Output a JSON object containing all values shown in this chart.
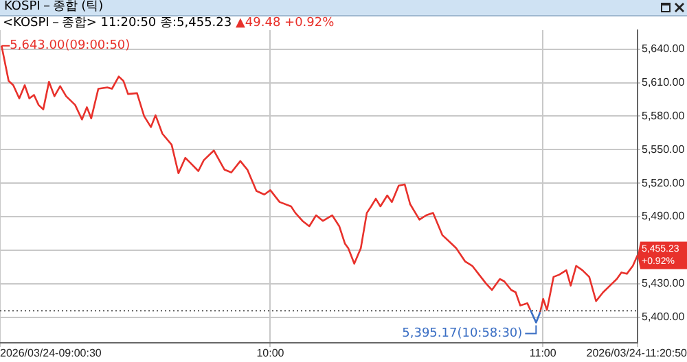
{
  "chart_data": {
    "type": "line",
    "title": "KOSPI－종합 (틱)",
    "subtitle": "<KOSPI－종합> 11:20:50 종:5,455.23",
    "x": [
      9.014,
      9.04,
      9.057,
      9.079,
      9.099,
      9.116,
      9.133,
      9.15,
      9.167,
      9.188,
      9.208,
      9.229,
      9.251,
      9.268,
      9.284,
      9.309,
      9.327,
      9.343,
      9.369,
      9.402,
      9.419,
      9.444,
      9.461,
      9.478,
      9.511,
      9.537,
      9.562,
      9.579,
      9.604,
      9.638,
      9.663,
      9.688,
      9.705,
      9.736,
      9.756,
      9.793,
      9.832,
      9.857,
      9.89,
      9.916,
      9.949,
      9.978,
      10.0,
      10.034,
      10.076,
      10.092,
      10.118,
      10.143,
      10.168,
      10.193,
      10.227,
      10.253,
      10.274,
      10.286,
      10.308,
      10.332,
      10.354,
      10.37,
      10.387,
      10.404,
      10.429,
      10.446,
      10.471,
      10.493,
      10.513,
      10.547,
      10.572,
      10.597,
      10.631,
      10.665,
      10.682,
      10.715,
      10.741,
      10.766,
      10.791,
      10.813,
      10.842,
      10.858,
      10.884,
      10.9,
      10.917,
      10.943,
      10.954,
      10.975,
      10.99,
      11.001,
      11.015,
      11.039,
      11.06,
      11.086,
      11.102,
      11.122,
      11.145,
      11.17,
      11.195,
      11.221,
      11.246,
      11.271,
      11.288,
      11.308,
      11.33,
      11.347
    ],
    "series": [
      {
        "color": "#e8312b",
        "values": [
          5643,
          5611.6,
          5607.7,
          5595.9,
          5607.7,
          5595.9,
          5599,
          5590,
          5586,
          5610.8,
          5597.8,
          5606.9,
          5597.8,
          5593.8,
          5590,
          5577,
          5588,
          5578,
          5604.5,
          5605.7,
          5604.5,
          5615.5,
          5611.6,
          5599.8,
          5600.6,
          5580,
          5570.2,
          5580.8,
          5564.3,
          5554.4,
          5528.8,
          5542.6,
          5538.6,
          5530.8,
          5540.6,
          5549.2,
          5532,
          5529.6,
          5539.8,
          5532,
          5513,
          5509.8,
          5513.7,
          5503.1,
          5499.2,
          5493.3,
          5486.2,
          5481.4,
          5491.2,
          5486.2,
          5491.2,
          5481.4,
          5465.7,
          5461.7,
          5447.9,
          5461.7,
          5493.3,
          5499.2,
          5506,
          5499.2,
          5509,
          5503.1,
          5517.8,
          5518.9,
          5501.2,
          5487.3,
          5491.2,
          5493.3,
          5473.5,
          5465.7,
          5461.7,
          5449.8,
          5445.9,
          5438,
          5430.2,
          5424.3,
          5434.1,
          5432.1,
          5424.3,
          5422.3,
          5410.4,
          5412.4,
          5406.5,
          null,
          5404.5,
          5416.3,
          5406.5,
          5436,
          5438,
          5442,
          5428.2,
          5445.9,
          5442,
          5436,
          5414.3,
          5422.3,
          5428.2,
          5434.1,
          5440,
          5438.8,
          5445.9,
          5455.23
        ]
      },
      {
        "color": "#3b6fc4",
        "x": [
          10.954,
          10.975,
          10.99
        ],
        "values": [
          5406.5,
          5395.17,
          5404.5
        ]
      }
    ],
    "xlim": [
      9.0083,
      11.3472
    ],
    "xticks": [
      {
        "value": 9.0083,
        "label": "2026/03/24-09:00:30"
      },
      {
        "value": 10,
        "label": "10:00"
      },
      {
        "value": 11,
        "label": "11:00"
      },
      {
        "value": 11.3472,
        "label": "2026/03/24-11:20:50"
      }
    ],
    "ylim": [
      5377,
      5657
    ],
    "yticks": [
      {
        "value": 5400,
        "label": "5,400.00"
      },
      {
        "value": 5430,
        "label": "5,430.00"
      },
      {
        "value": 5460,
        "label": null
      },
      {
        "value": 5490,
        "label": "5,490.00"
      },
      {
        "value": 5520,
        "label": "5,520.00"
      },
      {
        "value": 5550,
        "label": "5,550.00"
      },
      {
        "value": 5580,
        "label": "5,580.00"
      },
      {
        "value": 5610,
        "label": "5,610.00"
      },
      {
        "value": 5640,
        "label": "5,640.00"
      }
    ],
    "grid": true,
    "legend": false,
    "marker": "none",
    "line_style": "solid",
    "ref_lines": [
      {
        "axis": "y",
        "value": 5405.75,
        "color": "#555555",
        "line_style": "dotted"
      }
    ],
    "annotations": [
      "▲49.48 +0.92%",
      {
        "text": "5,643.00(09:00:50)",
        "x": 9.014,
        "y": 5643
      },
      {
        "text": "5,395.17(10:58:30)",
        "x": 10.975,
        "y": 5395.17
      },
      {
        "text": "5,455.23 +0.92%",
        "x": 11.3472,
        "y": 5455.23
      }
    ]
  }
}
